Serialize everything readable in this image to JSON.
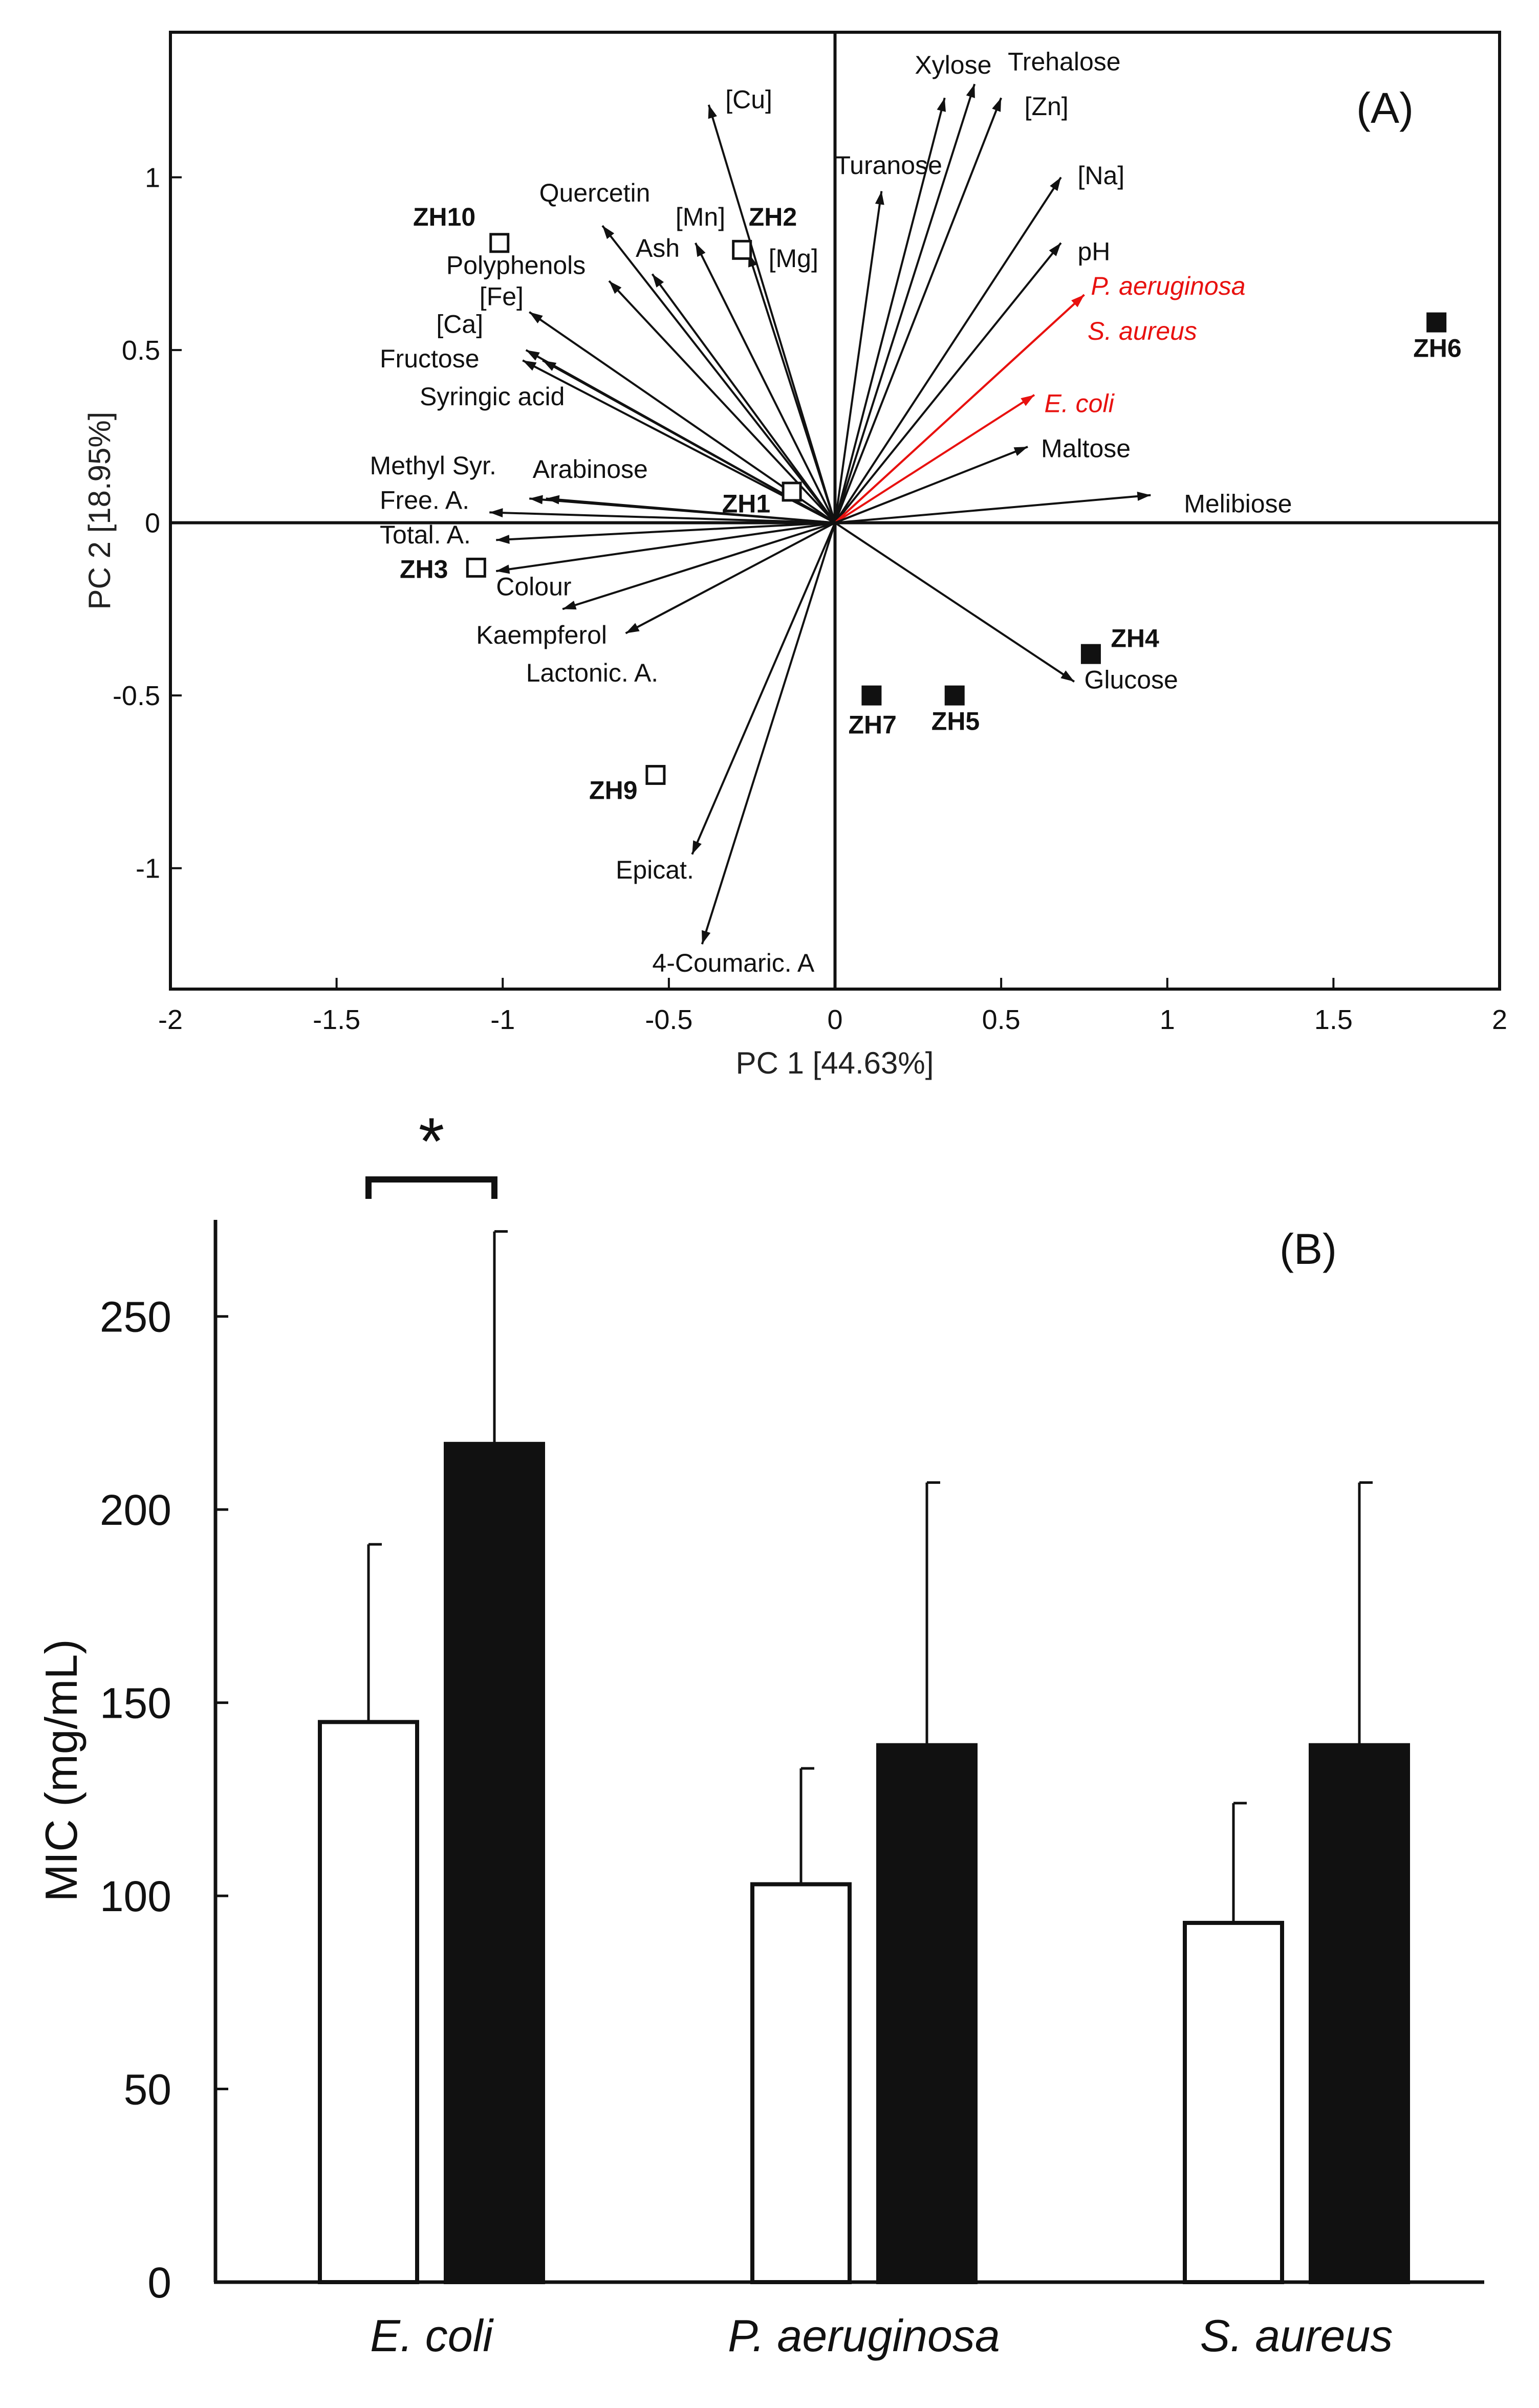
{
  "chart_data": [
    {
      "type": "scatter",
      "subtype": "biplot",
      "panel_label": "(A)",
      "xlabel": "PC 1 [44.63%]",
      "ylabel": "PC 2 [18.95%]",
      "xlim": [
        -2,
        2
      ],
      "ylim": [
        -1.35,
        1.42
      ],
      "xticks": [
        -2,
        -1.5,
        -1,
        -0.5,
        0,
        0.5,
        1,
        1.5,
        2
      ],
      "xtick_labels": [
        "-2",
        "-1.5",
        "-1",
        "-0.5",
        "0",
        "0.5",
        "1",
        "1.5",
        "2"
      ],
      "yticks": [
        -1,
        -0.5,
        0,
        0.5,
        1
      ],
      "ytick_labels": [
        "-1",
        "-0.5",
        "0",
        "0.5",
        "1"
      ],
      "colors": {
        "default": "#111111",
        "highlight": "#e8110f"
      },
      "vectors": [
        {
          "label": "[Cu]",
          "x": -0.38,
          "y": 1.21,
          "lx": -0.33,
          "ly": 1.2,
          "anchor": "start",
          "highlight": false
        },
        {
          "label": "Xylose",
          "x": 0.33,
          "y": 1.23,
          "lx": 0.24,
          "ly": 1.3,
          "anchor": "start",
          "highlight": false
        },
        {
          "label": "Trehalose",
          "x": 0.42,
          "y": 1.27,
          "lx": 0.52,
          "ly": 1.31,
          "anchor": "start",
          "highlight": false
        },
        {
          "label": "[Zn]",
          "x": 0.5,
          "y": 1.23,
          "lx": 0.57,
          "ly": 1.18,
          "anchor": "start",
          "highlight": false
        },
        {
          "label": "Turanose",
          "x": 0.14,
          "y": 0.96,
          "lx": 0.0,
          "ly": 1.01,
          "anchor": "start",
          "highlight": false
        },
        {
          "label": "[Na]",
          "x": 0.68,
          "y": 1.0,
          "lx": 0.73,
          "ly": 0.98,
          "anchor": "start",
          "highlight": false
        },
        {
          "label": "pH",
          "x": 0.68,
          "y": 0.81,
          "lx": 0.73,
          "ly": 0.76,
          "anchor": "start",
          "highlight": false
        },
        {
          "label": "P. aeruginosa",
          "x": 0.75,
          "y": 0.66,
          "lx": 0.77,
          "ly": 0.66,
          "anchor": "start",
          "highlight": true
        },
        {
          "label": "S. aureus",
          "x": 0.75,
          "y": 0.66,
          "lx": 0.76,
          "ly": 0.53,
          "anchor": "start",
          "highlight": true
        },
        {
          "label": "E. coli",
          "x": 0.6,
          "y": 0.37,
          "lx": 0.63,
          "ly": 0.32,
          "anchor": "start",
          "highlight": true
        },
        {
          "label": "Maltose",
          "x": 0.58,
          "y": 0.22,
          "lx": 0.62,
          "ly": 0.19,
          "anchor": "start",
          "highlight": false
        },
        {
          "label": "Melibiose",
          "x": 0.95,
          "y": 0.08,
          "lx": 1.05,
          "ly": 0.03,
          "anchor": "start",
          "highlight": false
        },
        {
          "label": "Glucose",
          "x": 0.72,
          "y": -0.46,
          "lx": 0.75,
          "ly": -0.48,
          "anchor": "start",
          "highlight": false
        },
        {
          "label": "4-Coumaric. A",
          "x": -0.4,
          "y": -1.22,
          "lx": -0.55,
          "ly": -1.3,
          "anchor": "start",
          "highlight": false
        },
        {
          "label": "Epicat.",
          "x": -0.43,
          "y": -0.96,
          "lx": -0.66,
          "ly": -1.03,
          "anchor": "start",
          "highlight": false
        },
        {
          "label": "Lactonic. A.",
          "x": -0.63,
          "y": -0.32,
          "lx": -0.93,
          "ly": -0.46,
          "anchor": "start",
          "highlight": false
        },
        {
          "label": "Kaempferol",
          "x": -0.82,
          "y": -0.25,
          "lx": -1.08,
          "ly": -0.35,
          "anchor": "start",
          "highlight": false
        },
        {
          "label": "Colour",
          "x": -1.02,
          "y": -0.14,
          "lx": -1.02,
          "ly": -0.21,
          "anchor": "start",
          "highlight": false
        },
        {
          "label": "Total. A.",
          "x": -1.02,
          "y": -0.05,
          "lx": -1.37,
          "ly": -0.06,
          "anchor": "start",
          "highlight": false
        },
        {
          "label": "Free. A.",
          "x": -1.04,
          "y": 0.03,
          "lx": -1.37,
          "ly": 0.04,
          "anchor": "start",
          "highlight": false
        },
        {
          "label": "Methyl Syr.",
          "x": -0.92,
          "y": 0.07,
          "lx": -1.4,
          "ly": 0.14,
          "anchor": "start",
          "highlight": false
        },
        {
          "label": "Arabinose",
          "x": -0.87,
          "y": 0.07,
          "lx": -0.91,
          "ly": 0.13,
          "anchor": "start",
          "highlight": false
        },
        {
          "label": "Syringic acid",
          "x": -0.94,
          "y": 0.47,
          "lx": -1.25,
          "ly": 0.34,
          "anchor": "start",
          "highlight": false
        },
        {
          "label": "Fructose",
          "x": -0.93,
          "y": 0.5,
          "lx": -1.37,
          "ly": 0.45,
          "anchor": "start",
          "highlight": false
        },
        {
          "label": "[Ca]",
          "x": -0.88,
          "y": 0.47,
          "lx": -1.2,
          "ly": 0.55,
          "anchor": "start",
          "highlight": false
        },
        {
          "label": "[Fe]",
          "x": -0.92,
          "y": 0.61,
          "lx": -1.07,
          "ly": 0.63,
          "anchor": "start",
          "highlight": false
        },
        {
          "label": "Polyphenols",
          "x": -0.68,
          "y": 0.7,
          "lx": -1.17,
          "ly": 0.72,
          "anchor": "start",
          "highlight": false
        },
        {
          "label": "Quercetin",
          "x": -0.7,
          "y": 0.86,
          "lx": -0.89,
          "ly": 0.93,
          "anchor": "start",
          "highlight": false
        },
        {
          "label": "Ash",
          "x": -0.55,
          "y": 0.72,
          "lx": -0.6,
          "ly": 0.77,
          "anchor": "start",
          "highlight": false
        },
        {
          "label": "[Mn]",
          "x": -0.42,
          "y": 0.81,
          "lx": -0.48,
          "ly": 0.86,
          "anchor": "start",
          "highlight": false
        },
        {
          "label": "[Mg]",
          "x": -0.26,
          "y": 0.78,
          "lx": -0.2,
          "ly": 0.74,
          "anchor": "start",
          "highlight": false
        }
      ],
      "observations": [
        {
          "label": "ZH10",
          "x": -1.01,
          "y": 0.81,
          "filled": false,
          "lx": -1.27,
          "ly": 0.86,
          "anchor": "start"
        },
        {
          "label": "ZH2",
          "x": -0.28,
          "y": 0.79,
          "filled": false,
          "lx": -0.26,
          "ly": 0.86,
          "anchor": "start"
        },
        {
          "label": "ZH1",
          "x": -0.13,
          "y": 0.09,
          "filled": false,
          "lx": -0.34,
          "ly": 0.03,
          "anchor": "start"
        },
        {
          "label": "ZH3",
          "x": -1.08,
          "y": -0.13,
          "filled": false,
          "lx": -1.31,
          "ly": -0.16,
          "anchor": "start"
        },
        {
          "label": "ZH9",
          "x": -0.54,
          "y": -0.73,
          "filled": false,
          "lx": -0.74,
          "ly": -0.8,
          "anchor": "start"
        },
        {
          "label": "ZH7",
          "x": 0.11,
          "y": -0.5,
          "filled": true,
          "lx": 0.04,
          "ly": -0.61,
          "anchor": "start"
        },
        {
          "label": "ZH5",
          "x": 0.36,
          "y": -0.5,
          "filled": true,
          "lx": 0.29,
          "ly": -0.6,
          "anchor": "start"
        },
        {
          "label": "ZH4",
          "x": 0.77,
          "y": -0.38,
          "filled": true,
          "lx": 0.83,
          "ly": -0.36,
          "anchor": "start"
        },
        {
          "label": "ZH6",
          "x": 1.81,
          "y": 0.58,
          "filled": true,
          "lx": 1.74,
          "ly": 0.48,
          "anchor": "start"
        }
      ]
    },
    {
      "type": "bar",
      "panel_label": "(B)",
      "xlabel": "",
      "ylabel": "MIC (mg/mL)",
      "ylim": [
        0,
        275
      ],
      "yticks": [
        0,
        50,
        100,
        150,
        200,
        250
      ],
      "ytick_labels": [
        "0",
        "50",
        "100",
        "150",
        "200",
        "250"
      ],
      "categories": [
        "E. coli",
        "P. aeruginosa",
        "S. aureus"
      ],
      "series": [
        {
          "fill": "open",
          "values": [
            145,
            103,
            93
          ],
          "errors": [
            46,
            30,
            31
          ]
        },
        {
          "fill": "filled",
          "values": [
            217,
            139,
            139
          ],
          "errors": [
            55,
            68,
            68
          ]
        }
      ],
      "significance": [
        {
          "category": "E. coli",
          "label": "*"
        }
      ]
    }
  ]
}
